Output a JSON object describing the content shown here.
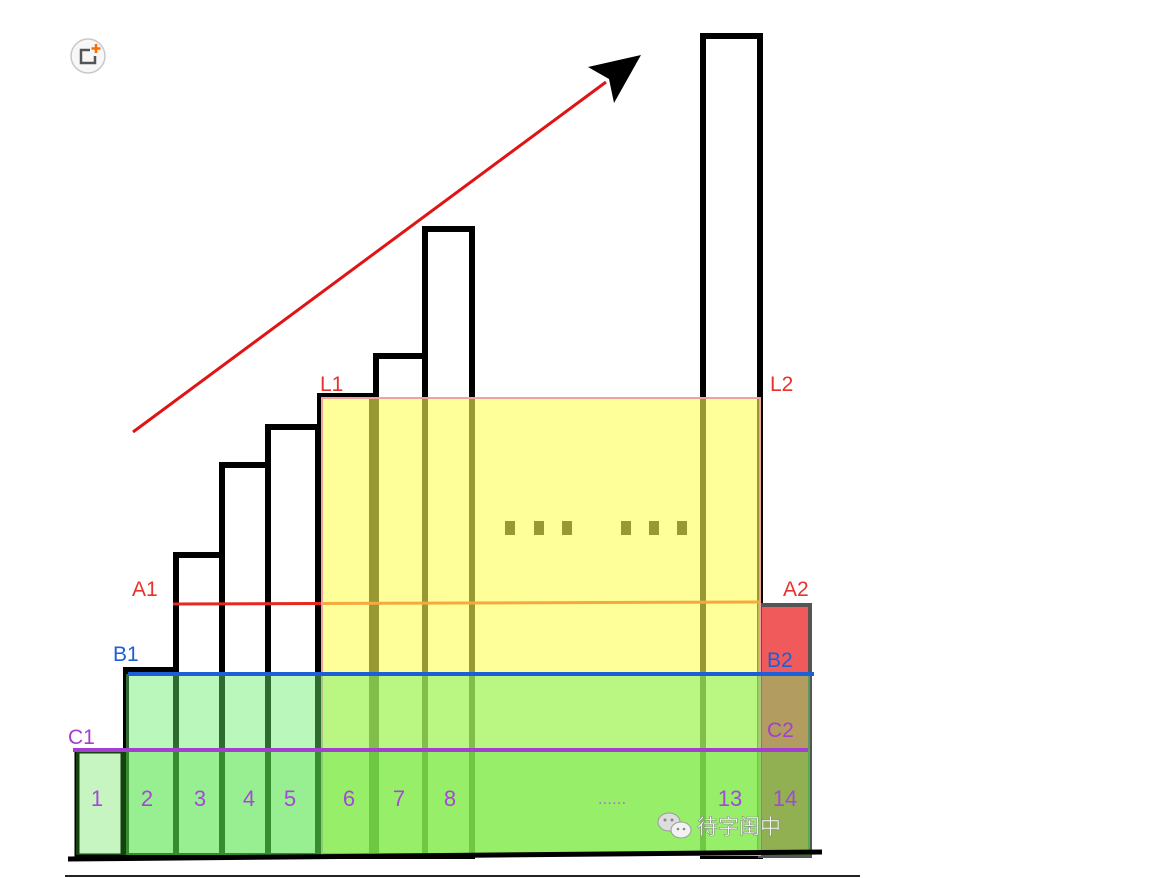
{
  "toolbar": {
    "add_icon": "add-to-collection-icon"
  },
  "diagram": {
    "labels": {
      "A1": "A1",
      "A2": "A2",
      "B1": "B1",
      "B2": "B2",
      "C1": "C1",
      "C2": "C2",
      "L1": "L1",
      "L2": "L2"
    },
    "bar_labels": [
      "1",
      "2",
      "3",
      "4",
      "5",
      "6",
      "7",
      "8",
      "......",
      "13",
      "14"
    ]
  },
  "watermark": {
    "icon": "wechat-icon",
    "text": "待字闺中"
  },
  "colors": {
    "line_a": "#e8281e",
    "line_b": "#1d5fd6",
    "line_c": "#a33fd0",
    "arrow": "#e01414",
    "bar_14": "#f05a5a",
    "overlay_yellow": "#ffff55"
  }
}
